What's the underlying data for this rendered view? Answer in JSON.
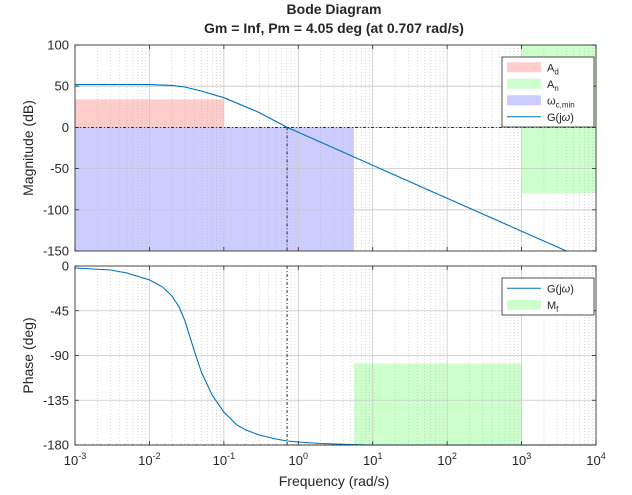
{
  "figure": {
    "title": "Bode Diagram",
    "subtitle": "Gm = Inf,  Pm = 4.05 deg (at 0.707 rad/s)",
    "xlabel": "Frequency  (rad/s)"
  },
  "chart_data": [
    {
      "type": "line",
      "panel": "magnitude",
      "ylabel": "Magnitude (dB)",
      "xscale": "log",
      "xlim": [
        0.001,
        10000
      ],
      "ylim": [
        -150,
        100
      ],
      "yticks": [
        100,
        50,
        0,
        -50,
        -100,
        -150
      ],
      "grid": true,
      "legend_position": "top-right",
      "regions": [
        {
          "name": "A_d",
          "label_main": "A",
          "label_sub": "d",
          "x": [
            0.001,
            0.1
          ],
          "y": [
            0,
            34
          ],
          "color": "#ffcccc"
        },
        {
          "name": "A_n",
          "label_main": "A",
          "label_sub": "n",
          "x": [
            1000,
            10000
          ],
          "y": [
            -80,
            100
          ],
          "color": "#ccffcc"
        },
        {
          "name": "omega_c_min",
          "label_main": "ω",
          "label_sub": "c,min",
          "x": [
            0.001,
            5.6
          ],
          "y": [
            -150,
            0
          ],
          "color": "#ccccff"
        }
      ],
      "series": [
        {
          "name": "G(jω)",
          "label_main": "G(j",
          "label_omega": "ω",
          "label_end": ")",
          "color": "#0072bd",
          "x": [
            0.001,
            0.01,
            0.02,
            0.03,
            0.05,
            0.1,
            0.3,
            0.707,
            1,
            10,
            100,
            1000,
            4000
          ],
          "y": [
            52,
            52,
            51,
            49,
            44,
            36,
            18,
            0,
            -6,
            -46,
            -86,
            -126,
            -150
          ]
        }
      ],
      "crossover_marker": {
        "x": 0.707,
        "y": 0
      }
    },
    {
      "type": "line",
      "panel": "phase",
      "ylabel": "Phase (deg)",
      "xscale": "log",
      "xlim": [
        0.001,
        10000
      ],
      "ylim": [
        -180,
        0
      ],
      "yticks": [
        0,
        -45,
        -90,
        -135,
        -180
      ],
      "xticks": [
        {
          "value": 0.001,
          "base": "10",
          "exp": "-3"
        },
        {
          "value": 0.01,
          "base": "10",
          "exp": "-2"
        },
        {
          "value": 0.1,
          "base": "10",
          "exp": "-1"
        },
        {
          "value": 1,
          "base": "10",
          "exp": "0"
        },
        {
          "value": 10,
          "base": "10",
          "exp": "1"
        },
        {
          "value": 100,
          "base": "10",
          "exp": "2"
        },
        {
          "value": 1000,
          "base": "10",
          "exp": "3"
        },
        {
          "value": 10000,
          "base": "10",
          "exp": "4"
        }
      ],
      "grid": true,
      "legend_position": "top-right",
      "regions": [
        {
          "name": "M_f",
          "label_main": "M",
          "label_sub": "f",
          "x": [
            5.6,
            1000
          ],
          "y": [
            -180,
            -98
          ],
          "color": "#ccffcc"
        }
      ],
      "series": [
        {
          "name": "G(jω)",
          "label_main": "G(j",
          "label_omega": "ω",
          "label_end": ")",
          "color": "#0072bd",
          "x": [
            0.001,
            0.003,
            0.005,
            0.01,
            0.015,
            0.02,
            0.025,
            0.03,
            0.04,
            0.05,
            0.07,
            0.1,
            0.15,
            0.2,
            0.3,
            0.5,
            0.707,
            1,
            2,
            5,
            10,
            100,
            10000
          ],
          "y": [
            -2,
            -4,
            -7,
            -14,
            -21,
            -30,
            -41,
            -55,
            -85,
            -107,
            -130,
            -147,
            -160,
            -165,
            -170,
            -174,
            -176,
            -177,
            -178.5,
            -179.5,
            -180,
            -180,
            -180
          ]
        }
      ],
      "crossover_marker": {
        "x": 0.707,
        "y": -180
      }
    }
  ]
}
